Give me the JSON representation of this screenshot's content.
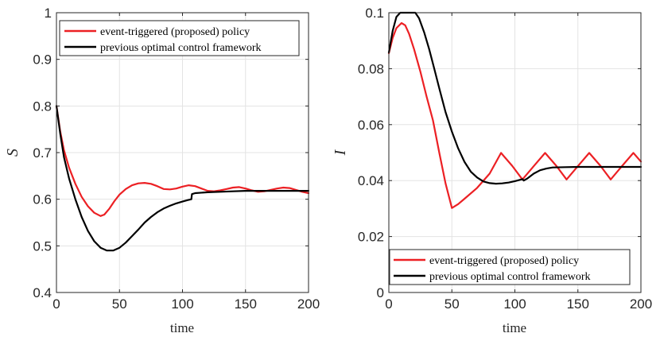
{
  "colors": {
    "red": "#ec2024",
    "black": "#000000",
    "grid": "#e3e3e3",
    "axis": "#262626"
  },
  "chart_data": [
    {
      "type": "line",
      "xlabel": "time",
      "ylabel": "S",
      "xlim": [
        0,
        200
      ],
      "ylim": [
        0.4,
        1.0
      ],
      "xticks": [
        "0",
        "50",
        "100",
        "150",
        "200"
      ],
      "yticks": [
        "0.4",
        "0.5",
        "0.6",
        "0.7",
        "0.8",
        "0.9",
        "1"
      ],
      "grid": true,
      "legend_position": "top-right",
      "series": [
        {
          "name": "event-triggered (proposed) policy",
          "color": "red",
          "points": [
            [
              0,
              0.8
            ],
            [
              3,
              0.745
            ],
            [
              6,
              0.705
            ],
            [
              10,
              0.668
            ],
            [
              15,
              0.633
            ],
            [
              20,
              0.605
            ],
            [
              25,
              0.585
            ],
            [
              30,
              0.571
            ],
            [
              35,
              0.564
            ],
            [
              38,
              0.567
            ],
            [
              42,
              0.58
            ],
            [
              46,
              0.596
            ],
            [
              50,
              0.61
            ],
            [
              55,
              0.622
            ],
            [
              60,
              0.63
            ],
            [
              65,
              0.634
            ],
            [
              70,
              0.635
            ],
            [
              75,
              0.633
            ],
            [
              80,
              0.628
            ],
            [
              85,
              0.622
            ],
            [
              90,
              0.621
            ],
            [
              95,
              0.623
            ],
            [
              100,
              0.627
            ],
            [
              105,
              0.63
            ],
            [
              110,
              0.628
            ],
            [
              115,
              0.623
            ],
            [
              120,
              0.618
            ],
            [
              125,
              0.617
            ],
            [
              130,
              0.619
            ],
            [
              135,
              0.622
            ],
            [
              140,
              0.625
            ],
            [
              145,
              0.626
            ],
            [
              150,
              0.623
            ],
            [
              155,
              0.619
            ],
            [
              160,
              0.616
            ],
            [
              165,
              0.617
            ],
            [
              170,
              0.62
            ],
            [
              175,
              0.623
            ],
            [
              180,
              0.625
            ],
            [
              185,
              0.624
            ],
            [
              190,
              0.62
            ],
            [
              195,
              0.616
            ],
            [
              200,
              0.613
            ]
          ]
        },
        {
          "name": "previous optimal control framework",
          "color": "black",
          "points": [
            [
              0,
              0.8
            ],
            [
              3,
              0.74
            ],
            [
              6,
              0.69
            ],
            [
              10,
              0.645
            ],
            [
              15,
              0.6
            ],
            [
              20,
              0.562
            ],
            [
              25,
              0.532
            ],
            [
              30,
              0.51
            ],
            [
              35,
              0.496
            ],
            [
              40,
              0.49
            ],
            [
              45,
              0.49
            ],
            [
              50,
              0.496
            ],
            [
              55,
              0.507
            ],
            [
              60,
              0.521
            ],
            [
              65,
              0.535
            ],
            [
              70,
              0.55
            ],
            [
              75,
              0.562
            ],
            [
              80,
              0.572
            ],
            [
              85,
              0.58
            ],
            [
              90,
              0.586
            ],
            [
              95,
              0.591
            ],
            [
              100,
              0.595
            ],
            [
              104,
              0.598
            ],
            [
              107,
              0.6
            ],
            [
              107.5,
              0.611
            ],
            [
              110,
              0.613
            ],
            [
              120,
              0.615
            ],
            [
              130,
              0.616
            ],
            [
              140,
              0.617
            ],
            [
              150,
              0.618
            ],
            [
              160,
              0.618
            ],
            [
              170,
              0.618
            ],
            [
              180,
              0.618
            ],
            [
              190,
              0.618
            ],
            [
              200,
              0.618
            ]
          ]
        }
      ]
    },
    {
      "type": "line",
      "xlabel": "time",
      "ylabel": "I",
      "xlim": [
        0,
        200
      ],
      "ylim": [
        0,
        0.1
      ],
      "xticks": [
        "0",
        "50",
        "100",
        "150",
        "200"
      ],
      "yticks": [
        "0",
        "0.02",
        "0.04",
        "0.06",
        "0.08",
        "0.1"
      ],
      "grid": true,
      "legend_position": "bottom-right",
      "series": [
        {
          "name": "event-triggered (proposed) policy",
          "color": "red",
          "points": [
            [
              0,
              0.0855
            ],
            [
              3,
              0.091
            ],
            [
              6,
              0.0945
            ],
            [
              10,
              0.0963
            ],
            [
              13,
              0.0955
            ],
            [
              16,
              0.0925
            ],
            [
              20,
              0.087
            ],
            [
              25,
              0.079
            ],
            [
              30,
              0.07
            ],
            [
              35,
              0.0615
            ],
            [
              40,
              0.05
            ],
            [
              45,
              0.039
            ],
            [
              50,
              0.0302
            ],
            [
              55,
              0.0316
            ],
            [
              60,
              0.0335
            ],
            [
              70,
              0.0374
            ],
            [
              80,
              0.0425
            ],
            [
              89,
              0.0499
            ],
            [
              98,
              0.0452
            ],
            [
              106,
              0.0404
            ],
            [
              115,
              0.0452
            ],
            [
              124,
              0.0499
            ],
            [
              133,
              0.0452
            ],
            [
              141,
              0.0404
            ],
            [
              150,
              0.0452
            ],
            [
              159,
              0.0499
            ],
            [
              168,
              0.0452
            ],
            [
              176,
              0.0404
            ],
            [
              185,
              0.0452
            ],
            [
              194,
              0.0499
            ],
            [
              200,
              0.0468
            ]
          ]
        },
        {
          "name": "previous optimal control framework",
          "color": "black",
          "points": [
            [
              0,
              0.0858
            ],
            [
              3,
              0.0935
            ],
            [
              6,
              0.0985
            ],
            [
              9,
              0.1
            ],
            [
              21,
              0.1
            ],
            [
              24,
              0.098
            ],
            [
              28,
              0.093
            ],
            [
              32,
              0.087
            ],
            [
              36,
              0.08
            ],
            [
              40,
              0.073
            ],
            [
              45,
              0.0645
            ],
            [
              50,
              0.0575
            ],
            [
              55,
              0.0515
            ],
            [
              60,
              0.0467
            ],
            [
              65,
              0.0432
            ],
            [
              70,
              0.0411
            ],
            [
              75,
              0.0397
            ],
            [
              80,
              0.0391
            ],
            [
              85,
              0.0389
            ],
            [
              90,
              0.039
            ],
            [
              95,
              0.0393
            ],
            [
              100,
              0.0398
            ],
            [
              106,
              0.0405
            ],
            [
              107,
              0.04
            ],
            [
              110,
              0.0408
            ],
            [
              115,
              0.0425
            ],
            [
              120,
              0.0437
            ],
            [
              125,
              0.0443
            ],
            [
              130,
              0.0447
            ],
            [
              140,
              0.0448
            ],
            [
              150,
              0.0449
            ],
            [
              160,
              0.0449
            ],
            [
              170,
              0.0449
            ],
            [
              180,
              0.0449
            ],
            [
              200,
              0.0449
            ]
          ]
        }
      ]
    }
  ]
}
